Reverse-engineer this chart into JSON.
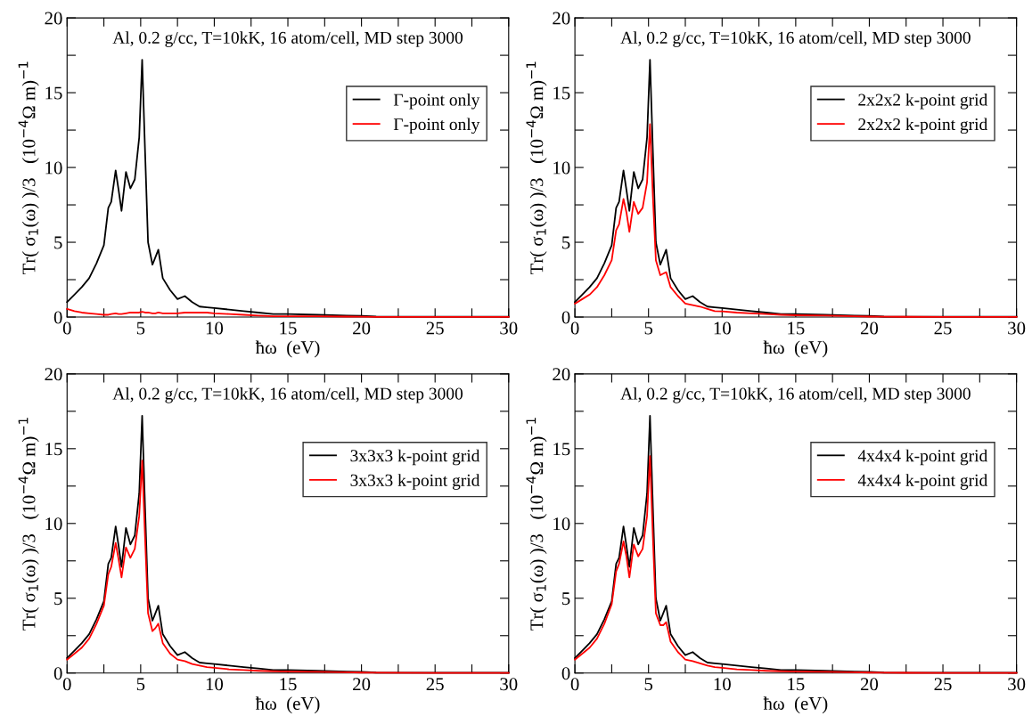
{
  "chart_data": [
    {
      "type": "line",
      "annotations": [
        "Al, 0.2 g/cc, T=10kK, 16 atom/cell, MD step 3000"
      ],
      "xlabel": "ħω  (eV)",
      "ylabel": "Tr( σ$_{1}$(ω) )/3   (10$^{−4}$Ω m)$^{−1}$",
      "x": [
        0,
        0.5,
        1,
        1.5,
        2,
        2.5,
        2.8,
        3,
        3.3,
        3.5,
        3.7,
        4,
        4.3,
        4.6,
        4.9,
        5.1,
        5.3,
        5.5,
        5.8,
        6.0,
        6.2,
        6.5,
        7,
        7.5,
        8,
        8.5,
        9,
        9.5,
        10,
        11,
        12,
        13,
        14,
        15,
        17,
        19,
        20,
        21,
        25,
        30
      ],
      "series": [
        {
          "name": "Γ-point only",
          "color": "#000000",
          "values": [
            1.0,
            1.5,
            2.0,
            2.6,
            3.6,
            4.8,
            7.3,
            7.7,
            9.8,
            8.5,
            7.1,
            9.7,
            8.6,
            9.2,
            12,
            17.2,
            11,
            5,
            3.5,
            4,
            4.5,
            2.6,
            1.8,
            1.2,
            1.4,
            1.0,
            0.7,
            0.65,
            0.6,
            0.5,
            0.4,
            0.3,
            0.2,
            0.2,
            0.15,
            0.1,
            0.08,
            0.03,
            0.02,
            0.02
          ]
        },
        {
          "name": "Γ-point only",
          "color": "#ff0000",
          "values": [
            0.55,
            0.4,
            0.3,
            0.25,
            0.2,
            0.15,
            0.15,
            0.2,
            0.25,
            0.2,
            0.2,
            0.25,
            0.3,
            0.3,
            0.3,
            0.35,
            0.3,
            0.3,
            0.25,
            0.25,
            0.3,
            0.25,
            0.25,
            0.25,
            0.3,
            0.3,
            0.3,
            0.3,
            0.25,
            0.2,
            0.15,
            0.1,
            0.05,
            0.05,
            0.05,
            0.03,
            0.02,
            0.01,
            0.01,
            0.01
          ]
        }
      ],
      "xlim": [
        0,
        30
      ],
      "ylim": [
        0,
        20
      ],
      "xticks": [
        0,
        {
          "value": 2.5,
          "label": null
        },
        5,
        {
          "value": 7.5,
          "label": null
        },
        10,
        {
          "value": 12.5,
          "label": null
        },
        15,
        {
          "value": 17.5,
          "label": null
        },
        20,
        {
          "value": 22.5,
          "label": null
        },
        25,
        {
          "value": 27.5,
          "label": null
        },
        30
      ],
      "yticks": [
        0,
        {
          "value": 2.5,
          "label": null
        },
        5,
        {
          "value": 7.5,
          "label": null
        },
        10,
        {
          "value": 12.5,
          "label": null
        },
        15,
        {
          "value": 17.5,
          "label": null
        },
        20
      ],
      "legend": "top right",
      "line_style": "solid"
    },
    {
      "type": "line",
      "annotations": [
        "Al, 0.2 g/cc, T=10kK, 16 atom/cell, MD step 3000"
      ],
      "xlabel": "ħω  (eV)",
      "ylabel": "Tr( σ$_{1}$(ω) )/3   (10$^{−4}$Ω m)$^{−1}$",
      "x": [
        0,
        0.5,
        1,
        1.5,
        2,
        2.5,
        2.8,
        3,
        3.3,
        3.5,
        3.7,
        4,
        4.3,
        4.6,
        4.9,
        5.1,
        5.3,
        5.5,
        5.8,
        6.0,
        6.2,
        6.5,
        7,
        7.5,
        8,
        8.5,
        9,
        9.5,
        10,
        11,
        12,
        13,
        14,
        15,
        17,
        19,
        20,
        21,
        25,
        30
      ],
      "series": [
        {
          "name": "2x2x2 k-point grid",
          "color": "#000000",
          "values": [
            1.0,
            1.5,
            2.0,
            2.6,
            3.6,
            4.8,
            7.3,
            7.7,
            9.8,
            8.5,
            7.1,
            9.7,
            8.6,
            9.2,
            12,
            17.2,
            11,
            5,
            3.5,
            4,
            4.5,
            2.6,
            1.8,
            1.2,
            1.4,
            1.0,
            0.7,
            0.65,
            0.6,
            0.5,
            0.4,
            0.3,
            0.2,
            0.2,
            0.15,
            0.1,
            0.08,
            0.03,
            0.02,
            0.02
          ]
        },
        {
          "name": "2x2x2 k-point grid",
          "color": "#ff0000",
          "values": [
            0.9,
            1.2,
            1.5,
            2.0,
            2.8,
            3.8,
            5.8,
            6.2,
            7.9,
            7.0,
            5.7,
            7.7,
            6.9,
            7.3,
            9,
            12.9,
            8,
            3.8,
            2.8,
            2.9,
            3.0,
            2.0,
            1.4,
            0.9,
            0.8,
            0.7,
            0.55,
            0.4,
            0.38,
            0.3,
            0.25,
            0.2,
            0.15,
            0.12,
            0.1,
            0.05,
            0.03,
            0.02,
            0.01,
            0.01
          ]
        }
      ],
      "xlim": [
        0,
        30
      ],
      "ylim": [
        0,
        20
      ],
      "xticks": [
        0,
        {
          "value": 2.5,
          "label": null
        },
        5,
        {
          "value": 7.5,
          "label": null
        },
        10,
        {
          "value": 12.5,
          "label": null
        },
        15,
        {
          "value": 17.5,
          "label": null
        },
        20,
        {
          "value": 22.5,
          "label": null
        },
        25,
        {
          "value": 27.5,
          "label": null
        },
        30
      ],
      "yticks": [
        0,
        {
          "value": 2.5,
          "label": null
        },
        5,
        {
          "value": 7.5,
          "label": null
        },
        10,
        {
          "value": 12.5,
          "label": null
        },
        15,
        {
          "value": 17.5,
          "label": null
        },
        20
      ],
      "legend": "top right",
      "line_style": "solid"
    },
    {
      "type": "line",
      "annotations": [
        "Al, 0.2 g/cc, T=10kK, 16 atom/cell, MD step 3000"
      ],
      "xlabel": "ħω  (eV)",
      "ylabel": "Tr( σ$_{1}$(ω) )/3   (10$^{−4}$Ω m)$^{−1}$",
      "x": [
        0,
        0.5,
        1,
        1.5,
        2,
        2.5,
        2.8,
        3,
        3.3,
        3.5,
        3.7,
        4,
        4.3,
        4.6,
        4.9,
        5.1,
        5.3,
        5.5,
        5.8,
        6.0,
        6.2,
        6.5,
        7,
        7.5,
        8,
        8.5,
        9,
        9.5,
        10,
        11,
        12,
        13,
        14,
        15,
        17,
        19,
        20,
        21,
        25,
        30
      ],
      "series": [
        {
          "name": "3x3x3 k-point grid",
          "color": "#000000",
          "values": [
            1.0,
            1.5,
            2.0,
            2.6,
            3.6,
            4.8,
            7.3,
            7.7,
            9.8,
            8.5,
            7.1,
            9.7,
            8.6,
            9.2,
            12,
            17.2,
            11,
            5,
            3.5,
            4,
            4.5,
            2.6,
            1.8,
            1.2,
            1.4,
            1.0,
            0.7,
            0.65,
            0.6,
            0.5,
            0.4,
            0.3,
            0.2,
            0.2,
            0.15,
            0.1,
            0.08,
            0.03,
            0.02,
            0.02
          ]
        },
        {
          "name": "3x3x3 k-point grid",
          "color": "#ff0000",
          "values": [
            0.9,
            1.3,
            1.7,
            2.3,
            3.3,
            4.5,
            6.6,
            7.1,
            8.7,
            7.6,
            6.4,
            8.4,
            7.7,
            8.3,
            10.5,
            14.2,
            9,
            4.0,
            2.8,
            3.0,
            3.3,
            2.0,
            1.3,
            0.9,
            0.8,
            0.6,
            0.5,
            0.4,
            0.35,
            0.25,
            0.2,
            0.15,
            0.12,
            0.1,
            0.08,
            0.05,
            0.03,
            0.02,
            0.01,
            0.01
          ]
        }
      ],
      "xlim": [
        0,
        30
      ],
      "ylim": [
        0,
        20
      ],
      "xticks": [
        0,
        {
          "value": 2.5,
          "label": null
        },
        5,
        {
          "value": 7.5,
          "label": null
        },
        10,
        {
          "value": 12.5,
          "label": null
        },
        15,
        {
          "value": 17.5,
          "label": null
        },
        20,
        {
          "value": 22.5,
          "label": null
        },
        25,
        {
          "value": 27.5,
          "label": null
        },
        30
      ],
      "yticks": [
        0,
        {
          "value": 2.5,
          "label": null
        },
        5,
        {
          "value": 7.5,
          "label": null
        },
        10,
        {
          "value": 12.5,
          "label": null
        },
        15,
        {
          "value": 17.5,
          "label": null
        },
        20
      ],
      "legend": "top right",
      "line_style": "solid"
    },
    {
      "type": "line",
      "annotations": [
        "Al, 0.2 g/cc, T=10kK, 16 atom/cell, MD step 3000"
      ],
      "xlabel": "ħω  (eV)",
      "ylabel": "Tr( σ$_{1}$(ω) )/3   (10$^{−4}$Ω m)$^{−1}$",
      "x": [
        0,
        0.5,
        1,
        1.5,
        2,
        2.5,
        2.8,
        3,
        3.3,
        3.5,
        3.7,
        4,
        4.3,
        4.6,
        4.9,
        5.1,
        5.3,
        5.5,
        5.8,
        6.0,
        6.2,
        6.5,
        7,
        7.5,
        8,
        8.5,
        9,
        9.5,
        10,
        11,
        12,
        13,
        14,
        15,
        17,
        19,
        20,
        21,
        25,
        30
      ],
      "series": [
        {
          "name": "4x4x4 k-point grid",
          "color": "#000000",
          "values": [
            1.0,
            1.5,
            2.0,
            2.6,
            3.6,
            4.8,
            7.3,
            7.7,
            9.8,
            8.5,
            7.1,
            9.7,
            8.6,
            9.2,
            12,
            17.2,
            11,
            5,
            3.5,
            4,
            4.5,
            2.6,
            1.8,
            1.2,
            1.4,
            1.0,
            0.7,
            0.65,
            0.6,
            0.5,
            0.4,
            0.3,
            0.2,
            0.2,
            0.15,
            0.1,
            0.08,
            0.03,
            0.02,
            0.02
          ]
        },
        {
          "name": "4x4x4 k-point grid",
          "color": "#ff0000",
          "values": [
            0.9,
            1.3,
            1.7,
            2.3,
            3.3,
            4.6,
            6.8,
            7.3,
            8.8,
            7.8,
            6.4,
            8.6,
            7.8,
            8.3,
            10.5,
            14.5,
            9,
            4.0,
            3.2,
            3.2,
            3.4,
            2.1,
            1.4,
            0.9,
            0.8,
            0.65,
            0.5,
            0.4,
            0.35,
            0.25,
            0.2,
            0.15,
            0.12,
            0.1,
            0.08,
            0.05,
            0.03,
            0.02,
            0.01,
            0.01
          ]
        }
      ],
      "xlim": [
        0,
        30
      ],
      "ylim": [
        0,
        20
      ],
      "xticks": [
        0,
        {
          "value": 2.5,
          "label": null
        },
        5,
        {
          "value": 7.5,
          "label": null
        },
        10,
        {
          "value": 12.5,
          "label": null
        },
        15,
        {
          "value": 17.5,
          "label": null
        },
        20,
        {
          "value": 22.5,
          "label": null
        },
        25,
        {
          "value": 27.5,
          "label": null
        },
        30
      ],
      "yticks": [
        0,
        {
          "value": 2.5,
          "label": null
        },
        5,
        {
          "value": 7.5,
          "label": null
        },
        10,
        {
          "value": 12.5,
          "label": null
        },
        15,
        {
          "value": 17.5,
          "label": null
        },
        20
      ],
      "legend": "top right",
      "line_style": "solid"
    }
  ]
}
